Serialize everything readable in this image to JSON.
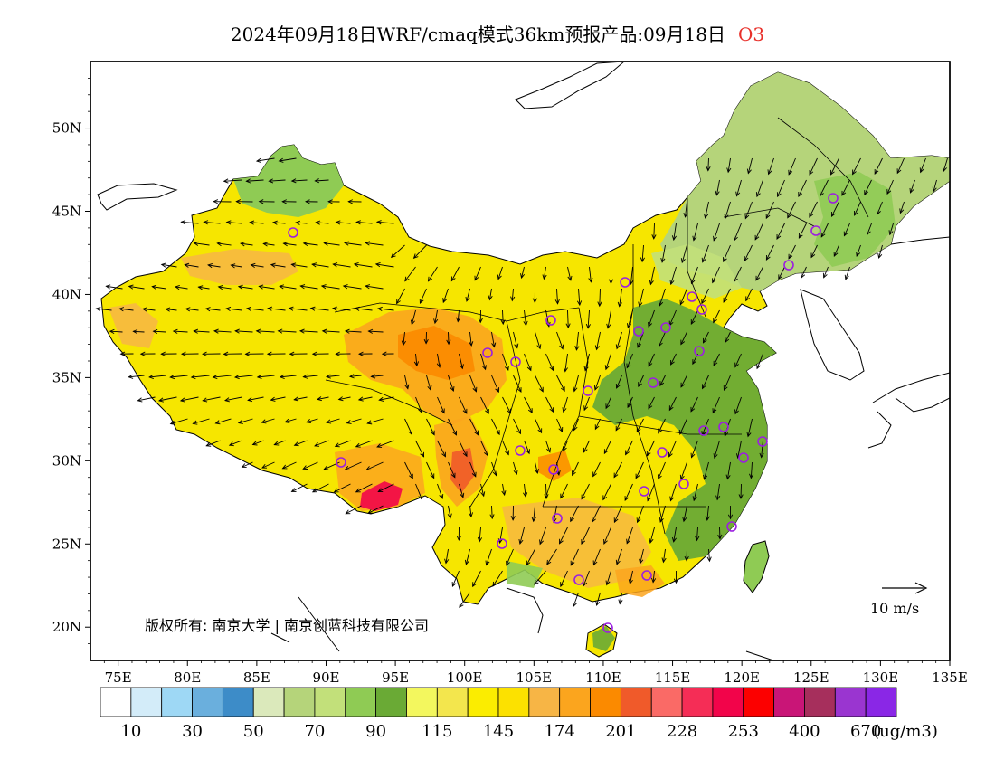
{
  "title": {
    "main": "2024年09月18日WRF/cmaq模式36km预报产品:09月18日",
    "species": "O3"
  },
  "map": {
    "lon_labels": [
      "75E",
      "80E",
      "85E",
      "90E",
      "95E",
      "100E",
      "105E",
      "110E",
      "115E",
      "120E",
      "125E",
      "130E",
      "135E"
    ],
    "lat_labels": [
      "20N",
      "25N",
      "30N",
      "35N",
      "40N",
      "45N",
      "50N"
    ],
    "lon_range": [
      73,
      135
    ],
    "lat_range": [
      18,
      54
    ],
    "copyright": "版权所有: 南京大学 | 南京创蓝科技有限公司",
    "scale_vector_label": "10 m/s",
    "colors": {
      "ocean": "#ffffff",
      "outside": "#ffffff",
      "outline": "#000000",
      "station_marker": "#9b1fe0"
    }
  },
  "colorbar": {
    "colors": [
      "#ffffff",
      "#d3ecf9",
      "#9ed8f5",
      "#6aafdd",
      "#3d8cc8",
      "#dbe9bb",
      "#b5d47a",
      "#c2e07a",
      "#8fcb54",
      "#6aaa35",
      "#f3f75e",
      "#f3e64d",
      "#fbed00",
      "#fce100",
      "#f7b545",
      "#fba51e",
      "#fb8a00",
      "#f05a2a",
      "#fa6a66",
      "#f52d56",
      "#f2044a",
      "#fc0000",
      "#c91577",
      "#a62f5c",
      "#9a35d0",
      "#8a27e6"
    ],
    "labels": [
      "10",
      "30",
      "50",
      "70",
      "90",
      "115",
      "145",
      "174",
      "201",
      "228",
      "253",
      "400",
      "670"
    ],
    "unit": "(ug/m3)"
  }
}
